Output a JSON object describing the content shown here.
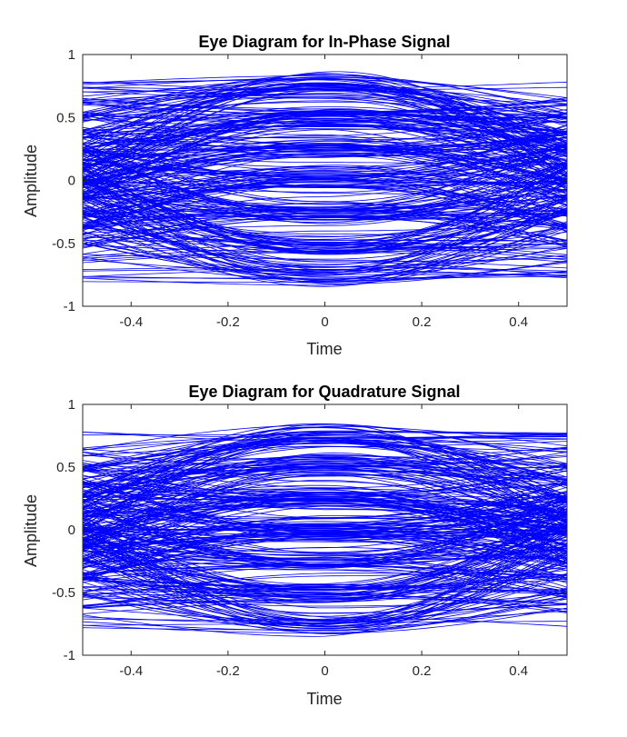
{
  "colors": {
    "trace": "#0000ff",
    "axis": "#262626",
    "background": "#ffffff"
  },
  "chart_data": [
    {
      "type": "line",
      "title": "Eye Diagram for In-Phase Signal",
      "xlabel": "Time",
      "ylabel": "Amplitude",
      "xlim": [
        -0.5,
        0.5
      ],
      "ylim": [
        -1,
        1
      ],
      "xticks": [
        -0.4,
        -0.2,
        0,
        0.2,
        0.4
      ],
      "xtick_labels": [
        "-0.4",
        "-0.2",
        "0",
        "0.2",
        "0.4"
      ],
      "yticks": [
        -1,
        -0.5,
        0,
        0.5,
        1
      ],
      "ytick_labels": [
        "-1",
        "-0.5",
        "0",
        "0.5",
        "1"
      ],
      "grid": false,
      "levels": [
        -0.75,
        -0.5,
        -0.25,
        0.0,
        0.25,
        0.5,
        0.75
      ],
      "trace_count": 320,
      "seed": 11
    },
    {
      "type": "line",
      "title": "Eye Diagram for Quadrature Signal",
      "xlabel": "Time",
      "ylabel": "Amplitude",
      "xlim": [
        -0.5,
        0.5
      ],
      "ylim": [
        -1,
        1
      ],
      "xticks": [
        -0.4,
        -0.2,
        0,
        0.2,
        0.4
      ],
      "xtick_labels": [
        "-0.4",
        "-0.2",
        "0",
        "0.2",
        "0.4"
      ],
      "yticks": [
        -1,
        -0.5,
        0,
        0.5,
        1
      ],
      "ytick_labels": [
        "-1",
        "-0.5",
        "0",
        "0.5",
        "1"
      ],
      "grid": false,
      "levels": [
        -0.75,
        -0.5,
        -0.25,
        0.0,
        0.25,
        0.5,
        0.75
      ],
      "trace_count": 320,
      "seed": 29
    }
  ]
}
